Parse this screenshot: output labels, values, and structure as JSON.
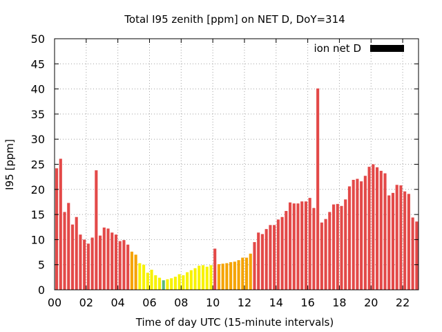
{
  "chart_data": {
    "type": "bar",
    "title": "Total I95 zenith [ppm] on NET D, DoY=314",
    "xlabel": "Time of day UTC (15-minute intervals)",
    "ylabel": "I95 [ppm]",
    "xlim": [
      0,
      22.75
    ],
    "ylim": [
      0,
      50
    ],
    "yticks": [
      0,
      5,
      10,
      15,
      20,
      25,
      30,
      35,
      40,
      45,
      50
    ],
    "xticks": [
      0,
      2,
      4,
      6,
      8,
      10,
      12,
      14,
      16,
      18,
      20,
      22
    ],
    "xtick_labels": [
      "00",
      "02",
      "04",
      "06",
      "08",
      "10",
      "12",
      "14",
      "16",
      "18",
      "20",
      "22"
    ],
    "grid": true,
    "legend": {
      "position": "top-right",
      "entries": [
        {
          "label": "ion net D",
          "color": "#000000"
        }
      ]
    },
    "colors": {
      "high": "#e34948",
      "orange": "#f5a300",
      "yellow": "#f7f200",
      "lowest": "#5cb87a"
    },
    "bin_hours": 0.25,
    "x": [
      0,
      0.25,
      0.5,
      0.75,
      1,
      1.25,
      1.5,
      1.75,
      2,
      2.25,
      2.5,
      2.75,
      3,
      3.25,
      3.5,
      3.75,
      4,
      4.25,
      4.5,
      4.75,
      5,
      5.25,
      5.5,
      5.75,
      6,
      6.25,
      6.5,
      6.75,
      7,
      7.25,
      7.5,
      7.75,
      8,
      8.25,
      8.5,
      8.75,
      9,
      9.25,
      9.5,
      9.75,
      10,
      10.25,
      10.5,
      10.75,
      11,
      11.25,
      11.5,
      11.75,
      12,
      12.25,
      12.5,
      12.75,
      13,
      13.25,
      13.5,
      13.75,
      14,
      14.25,
      14.5,
      14.75,
      15,
      15.25,
      15.5,
      15.75,
      16,
      16.25,
      16.5,
      16.75,
      17,
      17.25,
      17.5,
      17.75,
      18,
      18.25,
      18.5,
      18.75,
      19,
      19.25,
      19.5,
      19.75,
      20,
      20.25,
      20.5,
      20.75,
      21,
      21.25,
      21.5,
      21.75,
      22,
      22.25,
      22.5,
      22.75
    ],
    "values": [
      24.2,
      26.1,
      15.5,
      17.3,
      13.0,
      14.5,
      11.0,
      10.0,
      9.2,
      10.4,
      23.8,
      10.8,
      12.4,
      12.2,
      11.4,
      11.0,
      9.7,
      9.9,
      9.0,
      7.6,
      7.0,
      5.3,
      5.0,
      3.4,
      4.0,
      2.9,
      2.4,
      1.9,
      2.1,
      2.3,
      2.6,
      3.1,
      2.9,
      3.5,
      3.9,
      4.3,
      4.8,
      4.9,
      4.6,
      4.9,
      8.2,
      5.1,
      5.2,
      5.3,
      5.5,
      5.6,
      5.9,
      6.4,
      6.4,
      7.2,
      9.5,
      11.4,
      11.1,
      12.1,
      12.9,
      12.9,
      14.0,
      14.5,
      15.7,
      17.4,
      17.2,
      17.2,
      17.6,
      17.6,
      18.3,
      16.3,
      40.1,
      13.4,
      14.1,
      15.5,
      17.0,
      17.1,
      16.7,
      18.0,
      20.6,
      21.9,
      22.1,
      21.6,
      22.7,
      24.5,
      25.0,
      24.4,
      23.7,
      23.2,
      18.8,
      19.3,
      20.9,
      20.8,
      19.6,
      19.1,
      14.4,
      13.6
    ],
    "bar_colors": [
      "high",
      "high",
      "high",
      "high",
      "high",
      "high",
      "high",
      "high",
      "high",
      "high",
      "high",
      "high",
      "high",
      "high",
      "high",
      "high",
      "high",
      "high",
      "high",
      "orange",
      "orange",
      "yellow",
      "yellow",
      "yellow",
      "yellow",
      "yellow",
      "yellow",
      "lowest",
      "yellow",
      "yellow",
      "yellow",
      "yellow",
      "yellow",
      "yellow",
      "yellow",
      "yellow",
      "yellow",
      "yellow",
      "yellow",
      "yellow",
      "high",
      "orange",
      "orange",
      "orange",
      "orange",
      "orange",
      "orange",
      "orange",
      "orange",
      "orange",
      "high",
      "high",
      "high",
      "high",
      "high",
      "high",
      "high",
      "high",
      "high",
      "high",
      "high",
      "high",
      "high",
      "high",
      "high",
      "high",
      "high",
      "high",
      "high",
      "high",
      "high",
      "high",
      "high",
      "high",
      "high",
      "high",
      "high",
      "high",
      "high",
      "high",
      "high",
      "high",
      "high",
      "high",
      "high",
      "high",
      "high",
      "high",
      "high",
      "high",
      "high",
      "high"
    ]
  }
}
